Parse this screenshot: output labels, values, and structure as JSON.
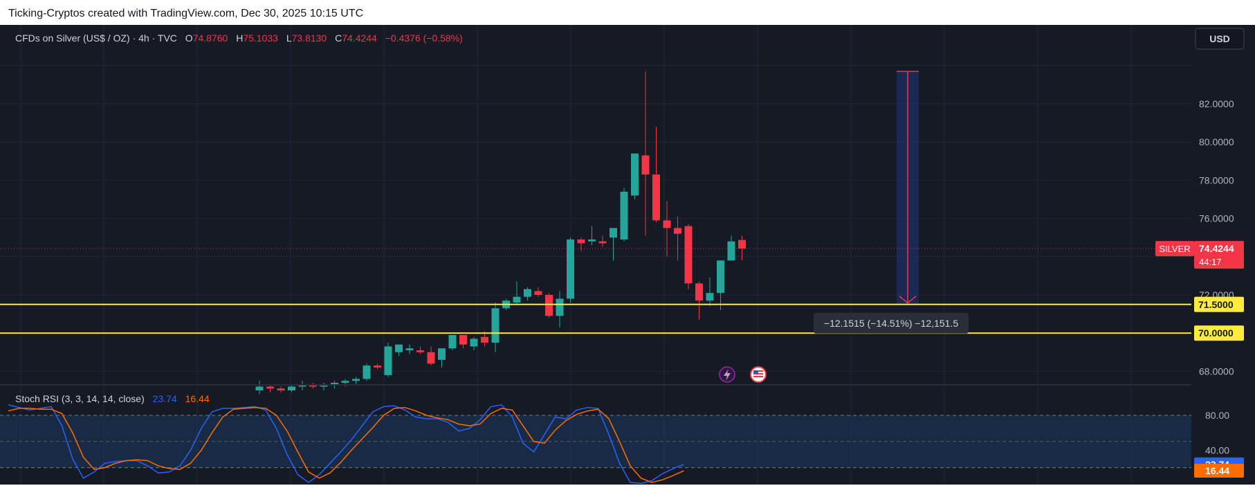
{
  "header": {
    "attribution": "Ticking-Cryptos created with TradingView.com, Dec 30, 2025 10:15 UTC"
  },
  "legend": {
    "symbol": "CFDs on Silver (US$ / OZ) · 4h · TVC",
    "o_label": "O",
    "o_value": "74.8760",
    "h_label": "H",
    "h_value": "75.1033",
    "l_label": "L",
    "l_value": "73.8130",
    "c_label": "C",
    "c_value": "74.4244",
    "change": "−0.4376 (−0.58%)"
  },
  "currency_button": "USD",
  "price_axis": {
    "ticks": [
      "82.0000",
      "80.0000",
      "78.0000",
      "76.0000",
      "72.0000",
      "68.0000"
    ]
  },
  "last_price": {
    "symbol_tag": "SILVER",
    "price": "74.4244",
    "countdown": "44:17"
  },
  "horizontal_lines": {
    "upper_label": "71.5000",
    "lower_label": "70.0000"
  },
  "measure": {
    "label": "−12.1515 (−14.51%) −12,151.5"
  },
  "stoch_rsi": {
    "title": "Stoch RSI (3, 3, 14, 14, close)",
    "k_value": "23.74",
    "d_value": "16.44",
    "ticks": [
      "80.00",
      "40.00"
    ]
  },
  "colors": {
    "background": "#161a25",
    "up": "#26a69a",
    "down": "#f23645",
    "hline": "#ffeb3b",
    "k_line": "#2962ff",
    "d_line": "#ff6d00"
  },
  "chart_data": [
    {
      "type": "candlestick",
      "title": "CFDs on Silver (US$ / OZ) · 4h · TVC",
      "ylim": [
        67.5,
        84.5
      ],
      "candles": [
        {
          "o": 67.0,
          "h": 67.5,
          "l": 66.8,
          "c": 67.2
        },
        {
          "o": 67.2,
          "h": 67.3,
          "l": 66.9,
          "c": 67.1
        },
        {
          "o": 67.1,
          "h": 67.2,
          "l": 66.9,
          "c": 67.0
        },
        {
          "o": 67.0,
          "h": 67.3,
          "l": 66.9,
          "c": 67.2
        },
        {
          "o": 67.2,
          "h": 67.5,
          "l": 67.0,
          "c": 67.3
        },
        {
          "o": 67.3,
          "h": 67.4,
          "l": 67.1,
          "c": 67.2
        },
        {
          "o": 67.2,
          "h": 67.4,
          "l": 67.0,
          "c": 67.3
        },
        {
          "o": 67.3,
          "h": 67.5,
          "l": 67.1,
          "c": 67.4
        },
        {
          "o": 67.4,
          "h": 67.6,
          "l": 67.2,
          "c": 67.5
        },
        {
          "o": 67.5,
          "h": 67.7,
          "l": 67.3,
          "c": 67.6
        },
        {
          "o": 67.6,
          "h": 68.4,
          "l": 67.5,
          "c": 68.3
        },
        {
          "o": 68.3,
          "h": 68.4,
          "l": 68.1,
          "c": 68.2
        },
        {
          "o": 67.8,
          "h": 69.5,
          "l": 67.7,
          "c": 69.3
        },
        {
          "o": 69.0,
          "h": 69.4,
          "l": 68.8,
          "c": 69.4
        },
        {
          "o": 69.1,
          "h": 69.4,
          "l": 68.9,
          "c": 69.2
        },
        {
          "o": 69.1,
          "h": 69.3,
          "l": 68.9,
          "c": 69.0
        },
        {
          "o": 69.0,
          "h": 69.3,
          "l": 68.3,
          "c": 68.4
        },
        {
          "o": 68.6,
          "h": 69.2,
          "l": 68.2,
          "c": 69.2
        },
        {
          "o": 69.2,
          "h": 69.9,
          "l": 69.1,
          "c": 69.9
        },
        {
          "o": 69.9,
          "h": 69.9,
          "l": 69.2,
          "c": 69.4
        },
        {
          "o": 69.3,
          "h": 69.8,
          "l": 69.1,
          "c": 69.7
        },
        {
          "o": 69.8,
          "h": 70.1,
          "l": 69.3,
          "c": 69.5
        },
        {
          "o": 69.5,
          "h": 71.6,
          "l": 69.0,
          "c": 71.3
        },
        {
          "o": 71.3,
          "h": 71.8,
          "l": 71.2,
          "c": 71.7
        },
        {
          "o": 71.6,
          "h": 72.7,
          "l": 71.5,
          "c": 71.9
        },
        {
          "o": 71.9,
          "h": 72.4,
          "l": 71.7,
          "c": 72.3
        },
        {
          "o": 72.2,
          "h": 72.4,
          "l": 71.9,
          "c": 72.0
        },
        {
          "o": 72.0,
          "h": 72.1,
          "l": 70.8,
          "c": 70.9
        },
        {
          "o": 70.9,
          "h": 72.2,
          "l": 70.3,
          "c": 71.8
        },
        {
          "o": 71.8,
          "h": 75.0,
          "l": 71.6,
          "c": 74.9
        },
        {
          "o": 74.9,
          "h": 75.0,
          "l": 74.3,
          "c": 74.7
        },
        {
          "o": 74.8,
          "h": 75.6,
          "l": 74.6,
          "c": 74.9
        },
        {
          "o": 74.8,
          "h": 75.1,
          "l": 74.5,
          "c": 74.7
        },
        {
          "o": 75.0,
          "h": 75.4,
          "l": 73.8,
          "c": 75.5
        },
        {
          "o": 74.9,
          "h": 77.6,
          "l": 74.8,
          "c": 77.4
        },
        {
          "o": 77.2,
          "h": 79.4,
          "l": 77.0,
          "c": 79.4
        },
        {
          "o": 79.3,
          "h": 83.7,
          "l": 75.1,
          "c": 78.3
        },
        {
          "o": 78.3,
          "h": 80.8,
          "l": 75.8,
          "c": 75.9
        },
        {
          "o": 75.9,
          "h": 76.9,
          "l": 74.0,
          "c": 75.5
        },
        {
          "o": 75.5,
          "h": 76.1,
          "l": 73.8,
          "c": 75.2
        },
        {
          "o": 75.6,
          "h": 75.7,
          "l": 72.3,
          "c": 72.6
        },
        {
          "o": 72.6,
          "h": 72.7,
          "l": 70.7,
          "c": 71.7
        },
        {
          "o": 71.7,
          "h": 72.9,
          "l": 71.4,
          "c": 72.1
        },
        {
          "o": 72.1,
          "h": 73.8,
          "l": 71.2,
          "c": 73.8
        },
        {
          "o": 73.8,
          "h": 75.1,
          "l": 73.8,
          "c": 74.8
        },
        {
          "o": 74.876,
          "h": 75.1033,
          "l": 73.813,
          "c": 74.4244
        }
      ],
      "horizontal_levels": [
        71.5,
        70.0
      ],
      "measure": {
        "from": 83.7,
        "to": 71.5,
        "delta": -12.1515,
        "delta_pct": -14.51
      }
    },
    {
      "type": "line",
      "title": "Stoch RSI (3, 3, 14, 14, close)",
      "ylim": [
        0,
        100
      ],
      "bands": [
        80,
        20
      ],
      "series": [
        {
          "name": "K",
          "values": [
            92,
            89,
            86,
            88,
            90,
            68,
            30,
            8,
            15,
            25,
            27,
            28,
            28,
            22,
            14,
            15,
            22,
            40,
            65,
            84,
            88,
            88,
            89,
            90,
            86,
            65,
            35,
            12,
            3,
            12,
            25,
            38,
            52,
            68,
            84,
            90,
            91,
            86,
            78,
            76,
            76,
            72,
            62,
            65,
            75,
            90,
            92,
            78,
            48,
            38,
            58,
            78,
            76,
            86,
            89,
            88,
            58,
            25,
            3,
            2,
            5,
            13,
            19,
            23.74
          ]
        },
        {
          "name": "D",
          "values": [
            85,
            88,
            88,
            87,
            87,
            82,
            60,
            32,
            18,
            20,
            25,
            28,
            29,
            28,
            22,
            19,
            18,
            25,
            40,
            60,
            78,
            87,
            88,
            89,
            88,
            80,
            62,
            38,
            15,
            8,
            14,
            26,
            40,
            53,
            66,
            80,
            88,
            89,
            85,
            80,
            77,
            75,
            70,
            68,
            70,
            82,
            88,
            86,
            68,
            50,
            48,
            63,
            74,
            81,
            85,
            87,
            76,
            50,
            22,
            8,
            3,
            6,
            11,
            16.44
          ]
        }
      ]
    }
  ]
}
